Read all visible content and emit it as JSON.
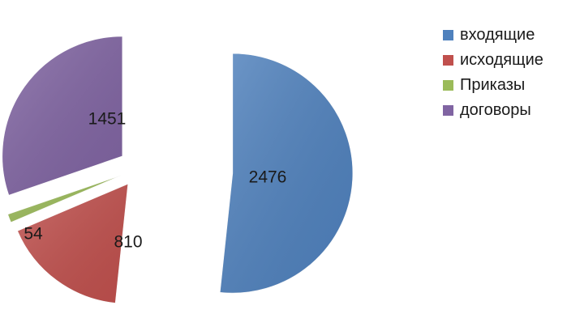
{
  "chart_data": {
    "type": "pie",
    "title": "",
    "exploded": true,
    "legend_position": "right",
    "categories": [
      "входящие",
      "исходящие",
      "Приказы",
      "договоры"
    ],
    "values": [
      2476,
      810,
      54,
      1451
    ],
    "labels": [
      "2476",
      "810",
      "54",
      "1451"
    ],
    "colors": [
      "#4f81bd",
      "#c0504d",
      "#9bbb59",
      "#8064a2"
    ]
  }
}
